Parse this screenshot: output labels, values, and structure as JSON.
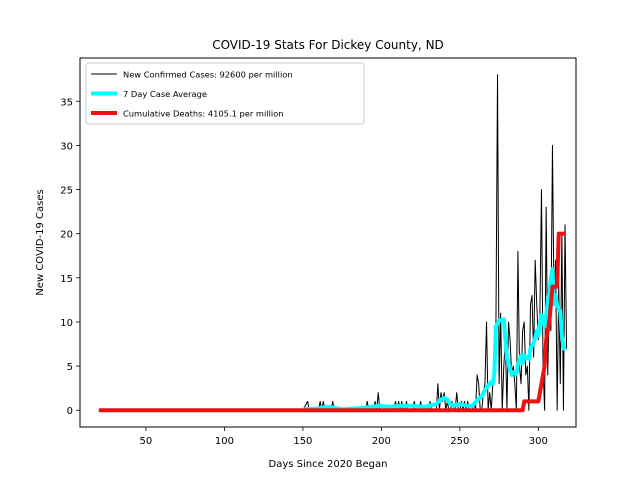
{
  "chart_data": {
    "type": "line",
    "title": "COVID-19 Stats For Dickey County, ND",
    "xlabel": "Days Since 2020 Began",
    "ylabel": "New COVID-19 Cases",
    "xlim": [
      8,
      324
    ],
    "ylim": [
      -1.9,
      39.9
    ],
    "xticks": [
      50,
      100,
      150,
      200,
      250,
      300
    ],
    "yticks": [
      0,
      5,
      10,
      15,
      20,
      25,
      30,
      35
    ],
    "grid": false,
    "legend_position": "top-left",
    "series": [
      {
        "name": "New Confirmed Cases: 92600 per million",
        "color": "#000000",
        "points": [
          [
            20,
            0
          ],
          [
            150,
            0
          ],
          [
            153,
            1
          ],
          [
            154,
            0
          ],
          [
            158,
            0
          ],
          [
            160,
            0
          ],
          [
            161,
            1
          ],
          [
            162,
            0
          ],
          [
            163,
            1
          ],
          [
            164,
            0
          ],
          [
            168,
            0
          ],
          [
            169,
            1
          ],
          [
            170,
            0
          ],
          [
            190,
            0
          ],
          [
            191,
            1
          ],
          [
            192,
            0
          ],
          [
            195,
            0
          ],
          [
            196,
            1
          ],
          [
            197,
            0
          ],
          [
            198,
            2
          ],
          [
            199,
            0
          ],
          [
            208,
            0
          ],
          [
            209,
            1
          ],
          [
            210,
            0
          ],
          [
            211,
            1
          ],
          [
            212,
            0
          ],
          [
            213,
            1
          ],
          [
            214,
            0
          ],
          [
            215,
            0
          ],
          [
            216,
            1
          ],
          [
            217,
            0
          ],
          [
            220,
            0
          ],
          [
            221,
            1
          ],
          [
            222,
            0
          ],
          [
            224,
            0
          ],
          [
            225,
            1
          ],
          [
            226,
            0
          ],
          [
            230,
            0
          ],
          [
            231,
            1
          ],
          [
            232,
            0
          ],
          [
            235,
            0
          ],
          [
            236,
            3
          ],
          [
            237,
            0
          ],
          [
            238,
            2
          ],
          [
            239,
            1
          ],
          [
            240,
            2
          ],
          [
            241,
            0
          ],
          [
            242,
            1
          ],
          [
            243,
            0
          ],
          [
            244,
            0
          ],
          [
            245,
            1
          ],
          [
            246,
            0
          ],
          [
            247,
            0
          ],
          [
            248,
            2
          ],
          [
            249,
            0
          ],
          [
            250,
            0
          ],
          [
            251,
            1
          ],
          [
            252,
            0
          ],
          [
            253,
            1
          ],
          [
            254,
            0
          ],
          [
            255,
            1
          ],
          [
            256,
            0
          ],
          [
            258,
            0
          ],
          [
            259,
            1
          ],
          [
            260,
            0
          ],
          [
            261,
            4
          ],
          [
            262,
            3
          ],
          [
            263,
            0
          ],
          [
            264,
            0
          ],
          [
            265,
            2
          ],
          [
            266,
            3
          ],
          [
            267,
            10
          ],
          [
            268,
            0
          ],
          [
            269,
            2
          ],
          [
            270,
            0
          ],
          [
            271,
            3
          ],
          [
            272,
            8
          ],
          [
            273,
            10
          ],
          [
            274,
            38
          ],
          [
            275,
            3
          ],
          [
            276,
            11
          ],
          [
            277,
            0
          ],
          [
            278,
            5
          ],
          [
            279,
            8
          ],
          [
            280,
            0
          ],
          [
            281,
            10
          ],
          [
            282,
            8
          ],
          [
            283,
            4
          ],
          [
            284,
            5
          ],
          [
            285,
            3
          ],
          [
            286,
            0
          ],
          [
            287,
            18
          ],
          [
            288,
            5
          ],
          [
            289,
            3
          ],
          [
            290,
            9
          ],
          [
            291,
            10
          ],
          [
            292,
            4
          ],
          [
            293,
            5
          ],
          [
            294,
            0
          ],
          [
            295,
            12
          ],
          [
            296,
            13
          ],
          [
            297,
            6
          ],
          [
            298,
            17
          ],
          [
            299,
            12
          ],
          [
            300,
            8
          ],
          [
            301,
            11
          ],
          [
            302,
            25
          ],
          [
            303,
            5
          ],
          [
            304,
            0
          ],
          [
            305,
            23
          ],
          [
            306,
            4
          ],
          [
            307,
            13
          ],
          [
            308,
            9
          ],
          [
            309,
            30
          ],
          [
            310,
            12
          ],
          [
            311,
            17
          ],
          [
            312,
            0
          ],
          [
            313,
            14
          ],
          [
            314,
            3
          ],
          [
            315,
            20
          ],
          [
            316,
            0
          ],
          [
            317,
            21
          ],
          [
            318,
            7
          ]
        ]
      },
      {
        "name": "7 Day Case Average",
        "color": "#00ffff",
        "points": [
          [
            150,
            0.1
          ],
          [
            160,
            0.2
          ],
          [
            165,
            0.4
          ],
          [
            170,
            0.3
          ],
          [
            175,
            0.1
          ],
          [
            190,
            0.3
          ],
          [
            198,
            0.5
          ],
          [
            205,
            0.4
          ],
          [
            212,
            0.5
          ],
          [
            220,
            0.5
          ],
          [
            228,
            0.4
          ],
          [
            235,
            0.7
          ],
          [
            238,
            1.2
          ],
          [
            240,
            1.4
          ],
          [
            242,
            1.2
          ],
          [
            244,
            0.7
          ],
          [
            246,
            0.5
          ],
          [
            248,
            0.6
          ],
          [
            250,
            0.7
          ],
          [
            252,
            0.6
          ],
          [
            255,
            0.5
          ],
          [
            258,
            0.5
          ],
          [
            260,
            0.9
          ],
          [
            262,
            1.3
          ],
          [
            264,
            1.6
          ],
          [
            266,
            2.3
          ],
          [
            268,
            2.8
          ],
          [
            270,
            3.2
          ],
          [
            271,
            3.0
          ],
          [
            272,
            4.2
          ],
          [
            273,
            9.5
          ],
          [
            274,
            9.8
          ],
          [
            275,
            10.2
          ],
          [
            277,
            10.1
          ],
          [
            278,
            10.3
          ],
          [
            279,
            8.0
          ],
          [
            280,
            6.0
          ],
          [
            281,
            5.4
          ],
          [
            282,
            4.6
          ],
          [
            283,
            4.0
          ],
          [
            284,
            4.3
          ],
          [
            286,
            4.1
          ],
          [
            287,
            5.2
          ],
          [
            289,
            6.2
          ],
          [
            290,
            5.3
          ],
          [
            291,
            6.2
          ],
          [
            292,
            6.0
          ],
          [
            294,
            5.8
          ],
          [
            295,
            7.0
          ],
          [
            297,
            7.6
          ],
          [
            298,
            8.2
          ],
          [
            299,
            9.0
          ],
          [
            300,
            8.4
          ],
          [
            301,
            9.8
          ],
          [
            302,
            10.8
          ],
          [
            303,
            10.2
          ],
          [
            304,
            9.5
          ],
          [
            305,
            10.8
          ],
          [
            306,
            12.3
          ],
          [
            307,
            13.2
          ],
          [
            308,
            15.0
          ],
          [
            309,
            16.0
          ],
          [
            310,
            12.0
          ],
          [
            311,
            13.0
          ],
          [
            312,
            11.8
          ],
          [
            313,
            11.5
          ],
          [
            314,
            11.2
          ],
          [
            315,
            8.5
          ],
          [
            316,
            7.2
          ],
          [
            317,
            6.8
          ]
        ]
      },
      {
        "name": "Cumulative Deaths: 4105.1 per million",
        "color": "#ee1111",
        "points": [
          [
            20,
            0
          ],
          [
            290,
            0
          ],
          [
            291,
            1
          ],
          [
            300,
            1
          ],
          [
            301,
            2
          ],
          [
            304,
            5
          ],
          [
            305,
            8
          ],
          [
            306,
            9
          ],
          [
            307,
            10
          ],
          [
            308,
            12
          ],
          [
            309,
            14
          ],
          [
            312,
            14
          ],
          [
            313,
            20
          ],
          [
            317,
            20
          ]
        ]
      }
    ]
  }
}
